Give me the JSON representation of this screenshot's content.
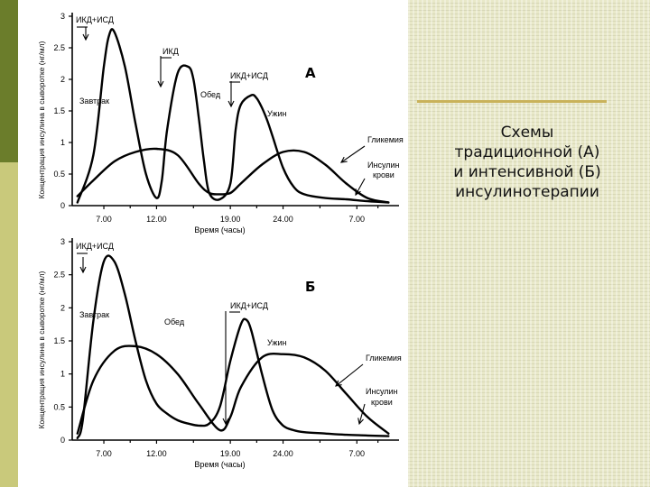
{
  "caption": {
    "lines": [
      "Схемы",
      "традиционной (А)",
      "и интенсивной  (Б)",
      "инсулинотерапии"
    ]
  },
  "colors": {
    "sidebar_dark": "#6b7d2b",
    "sidebar_light": "#c9c97b",
    "panel_bg": "#e8e8c8",
    "divider": "#c9b25a",
    "curve": "#000000"
  },
  "chart_data": [
    {
      "type": "line",
      "panel_letter": "А",
      "ylabel": "Концентрация инсулина в сыворотке (нг/мл)",
      "xlabel": "Время (часы)",
      "y_ticks": [
        "0",
        "0.5",
        "1",
        "1.5",
        "2",
        "2.5",
        "3"
      ],
      "x_ticks": [
        "7.00",
        "12.00",
        "19.00",
        "24.00",
        "7.00"
      ],
      "ylim": [
        0,
        3
      ],
      "xlim": [
        4,
        35
      ],
      "grid": false,
      "series": [
        {
          "name": "Инсулин крови",
          "x": [
            4.5,
            6,
            7,
            7.5,
            8,
            9,
            10,
            11,
            12,
            12.5,
            13,
            14,
            15,
            15.5,
            16,
            16.5,
            17,
            18,
            19,
            19.5,
            20,
            21,
            21.5,
            22,
            22.5,
            23,
            24,
            25,
            26,
            28,
            30,
            32,
            34
          ],
          "y": [
            0.05,
            0.8,
            2.2,
            2.7,
            2.75,
            2.2,
            1.3,
            0.5,
            0.12,
            0.4,
            1.2,
            2.1,
            2.2,
            2.0,
            1.4,
            0.7,
            0.2,
            0.1,
            0.35,
            1.2,
            1.6,
            1.75,
            1.7,
            1.55,
            1.35,
            1.1,
            0.6,
            0.3,
            0.18,
            0.12,
            0.1,
            0.07,
            0.05
          ]
        },
        {
          "name": "Гликемия",
          "x": [
            4.5,
            6,
            8,
            10,
            12,
            14,
            16,
            17,
            18,
            19,
            20,
            22,
            24,
            26,
            28,
            30,
            32,
            34
          ],
          "y": [
            0.15,
            0.4,
            0.7,
            0.85,
            0.9,
            0.8,
            0.35,
            0.2,
            0.18,
            0.2,
            0.35,
            0.65,
            0.85,
            0.85,
            0.65,
            0.35,
            0.12,
            0.05
          ]
        }
      ],
      "annotations": [
        "ИКД+ИСД",
        "ИКД",
        "ИКД+ИСД",
        "Завтрак",
        "Обед",
        "Ужин",
        "Гликемия",
        "Инсулин",
        "крови"
      ]
    },
    {
      "type": "line",
      "panel_letter": "Б",
      "ylabel": "Концентрация инсулина в сыворотке (нг/мл)",
      "xlabel": "Время (часы)",
      "y_ticks": [
        "0",
        "0.5",
        "1",
        "1.5",
        "2",
        "2.5",
        "3"
      ],
      "x_ticks": [
        "7.00",
        "12.00",
        "19.00",
        "24.00",
        "7.00"
      ],
      "ylim": [
        0,
        3
      ],
      "xlim": [
        4,
        35
      ],
      "grid": false,
      "series": [
        {
          "name": "Инсулин крови",
          "x": [
            4.5,
            5,
            6,
            7,
            8,
            9,
            10,
            11,
            12,
            13,
            14,
            15,
            16,
            17,
            18,
            19,
            20,
            20.5,
            21,
            22,
            23,
            24,
            25,
            26,
            28,
            30,
            32,
            34
          ],
          "y": [
            0.03,
            0.3,
            1.8,
            2.7,
            2.7,
            2.2,
            1.5,
            0.9,
            0.55,
            0.4,
            0.3,
            0.25,
            0.22,
            0.25,
            0.5,
            1.2,
            1.75,
            1.82,
            1.65,
            1.0,
            0.45,
            0.22,
            0.15,
            0.12,
            0.1,
            0.08,
            0.07,
            0.06
          ]
        },
        {
          "name": "Гликемия",
          "x": [
            4.5,
            6,
            8,
            10,
            12,
            14,
            16,
            18,
            19,
            20,
            22,
            24,
            26,
            28,
            30,
            32,
            34
          ],
          "y": [
            0.1,
            0.9,
            1.35,
            1.42,
            1.3,
            1.0,
            0.55,
            0.15,
            0.35,
            0.8,
            1.25,
            1.3,
            1.25,
            1.05,
            0.7,
            0.35,
            0.1
          ]
        }
      ],
      "annotations": [
        "ИКД+ИСД",
        "ИКД+ИСД",
        "Завтрак",
        "Обед",
        "Ужин",
        "Гликемия",
        "Инсулин",
        "крови"
      ]
    }
  ]
}
